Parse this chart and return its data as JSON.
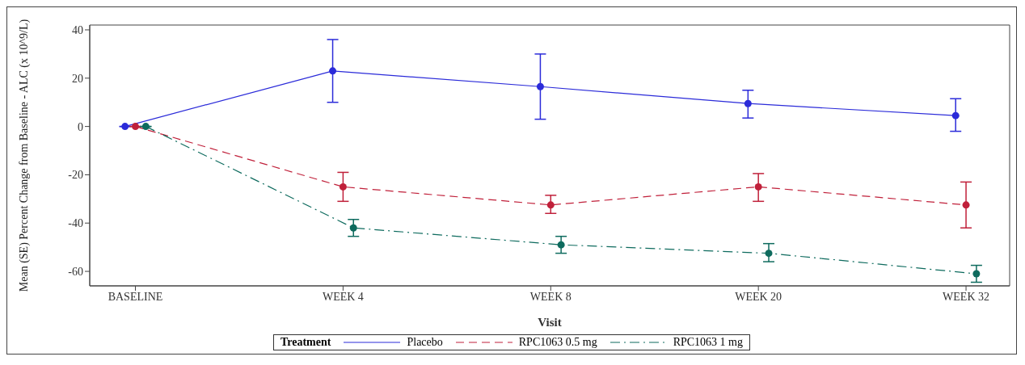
{
  "chart_data": {
    "type": "line",
    "xlabel": "Visit",
    "ylabel": "Mean (SE) Percent Change from Baseline - ALC (x 10^9/L)",
    "legend_title": "Treatment",
    "categories": [
      "BASELINE",
      "WEEK 4",
      "WEEK 8",
      "WEEK 20",
      "WEEK 32"
    ],
    "series": [
      {
        "name": "Placebo",
        "color": "#2b2bd9",
        "line_style": "solid",
        "values": [
          0,
          23,
          16.5,
          9.5,
          4.5
        ],
        "errors": [
          null,
          [
            10,
            36
          ],
          [
            3,
            30
          ],
          [
            3.5,
            15
          ],
          [
            -2,
            11.5
          ]
        ]
      },
      {
        "name": "RPC1063 0.5 mg",
        "color": "#c0203a",
        "line_style": "dashed",
        "values": [
          0,
          -25,
          -32.5,
          -25,
          -32.5
        ],
        "errors": [
          null,
          [
            -31,
            -19
          ],
          [
            -36,
            -28.5
          ],
          [
            -31,
            -19.5
          ],
          [
            -42,
            -23
          ]
        ]
      },
      {
        "name": "RPC1063 1 mg",
        "color": "#0e6b5e",
        "line_style": "dashdot",
        "values": [
          0,
          -42,
          -49,
          -52.5,
          -61
        ],
        "errors": [
          null,
          [
            -45.5,
            -38.5
          ],
          [
            -52.5,
            -45.5
          ],
          [
            -56,
            -48.5
          ],
          [
            -64.5,
            -57.5
          ]
        ]
      }
    ],
    "ylim": [
      -66,
      42
    ],
    "yticks": [
      -60,
      -40,
      -20,
      0,
      20,
      40
    ],
    "marker": "circle",
    "grid": false,
    "legend": "bottom"
  }
}
